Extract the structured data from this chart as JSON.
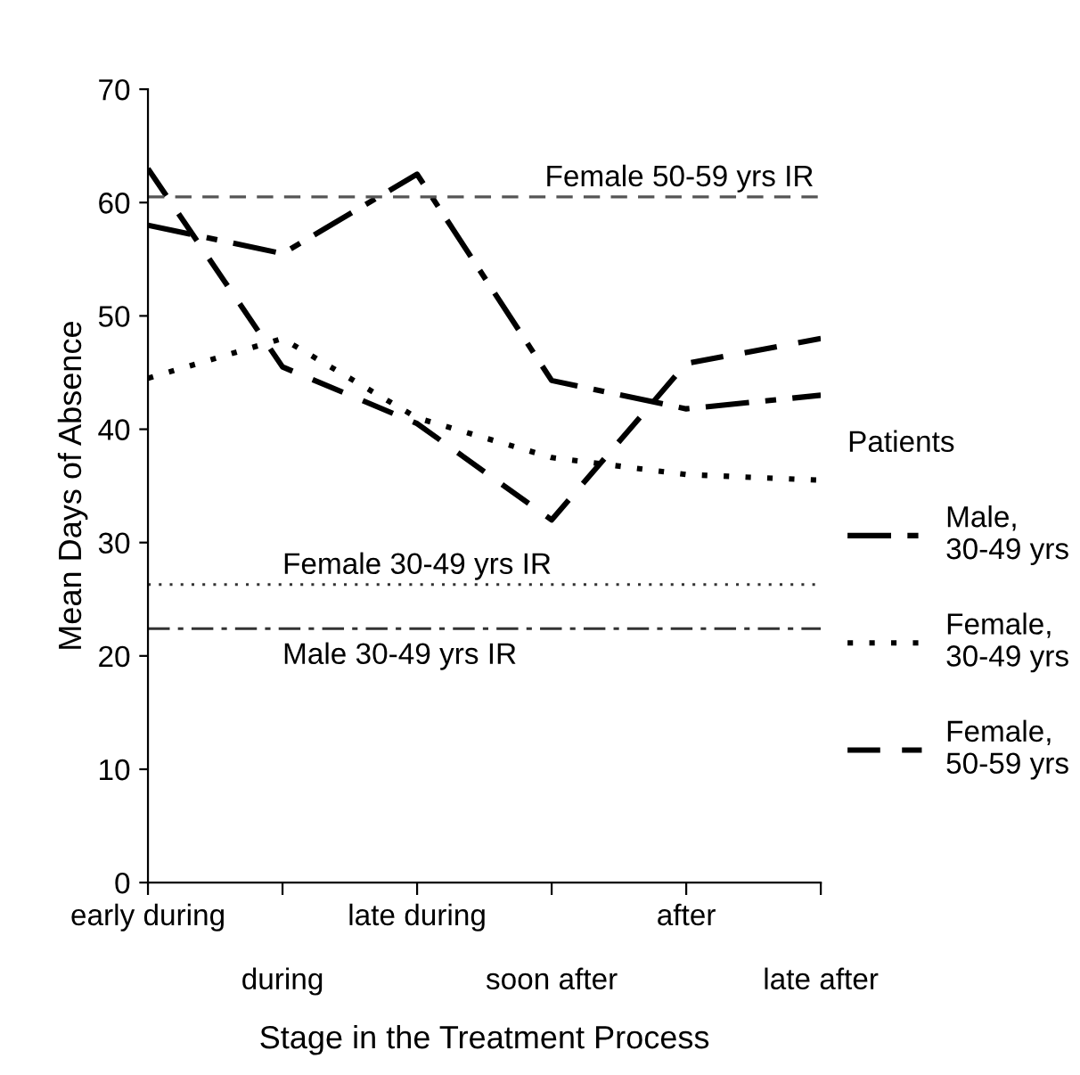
{
  "chart_data": {
    "type": "line",
    "xlabel": "Stage in the Treatment Process",
    "ylabel": "Mean Days of Absence",
    "legend_title": "Patients",
    "legend": "right",
    "grid": false,
    "marker": "none",
    "categories": [
      "early during",
      "during",
      "late during",
      "soon after",
      "after",
      "late after"
    ],
    "ylim": [
      0,
      70
    ],
    "yticks": [
      0,
      10,
      20,
      30,
      40,
      50,
      60,
      70
    ],
    "series": [
      {
        "name": "Male,\n30-49 yrs",
        "color": "#000000",
        "line_style": "dashdot",
        "values": [
          58,
          55.5,
          62.5,
          44.3,
          41.8,
          43
        ]
      },
      {
        "name": "Female,\n30-49 yrs",
        "color": "#000000",
        "line_style": "dotted",
        "values": [
          44.5,
          48,
          41,
          37.5,
          36,
          35.5
        ]
      },
      {
        "name": "Female,\n50-59 yrs",
        "color": "#000000",
        "line_style": "dashed",
        "values": [
          63,
          45.5,
          40.5,
          32,
          45.8,
          48
        ]
      }
    ],
    "ref_lines": [
      {
        "axis": "y",
        "value": 60.5,
        "label": "Female 50-59 yrs IR",
        "color": "#555555",
        "line_style": "dashed"
      },
      {
        "axis": "y",
        "value": 26.3,
        "label": "Female 30-49 yrs IR",
        "color": "#333333",
        "line_style": "dotted"
      },
      {
        "axis": "y",
        "value": 22.4,
        "label": "Male 30-49 yrs IR",
        "color": "#333333",
        "line_style": "dashdot"
      }
    ]
  }
}
